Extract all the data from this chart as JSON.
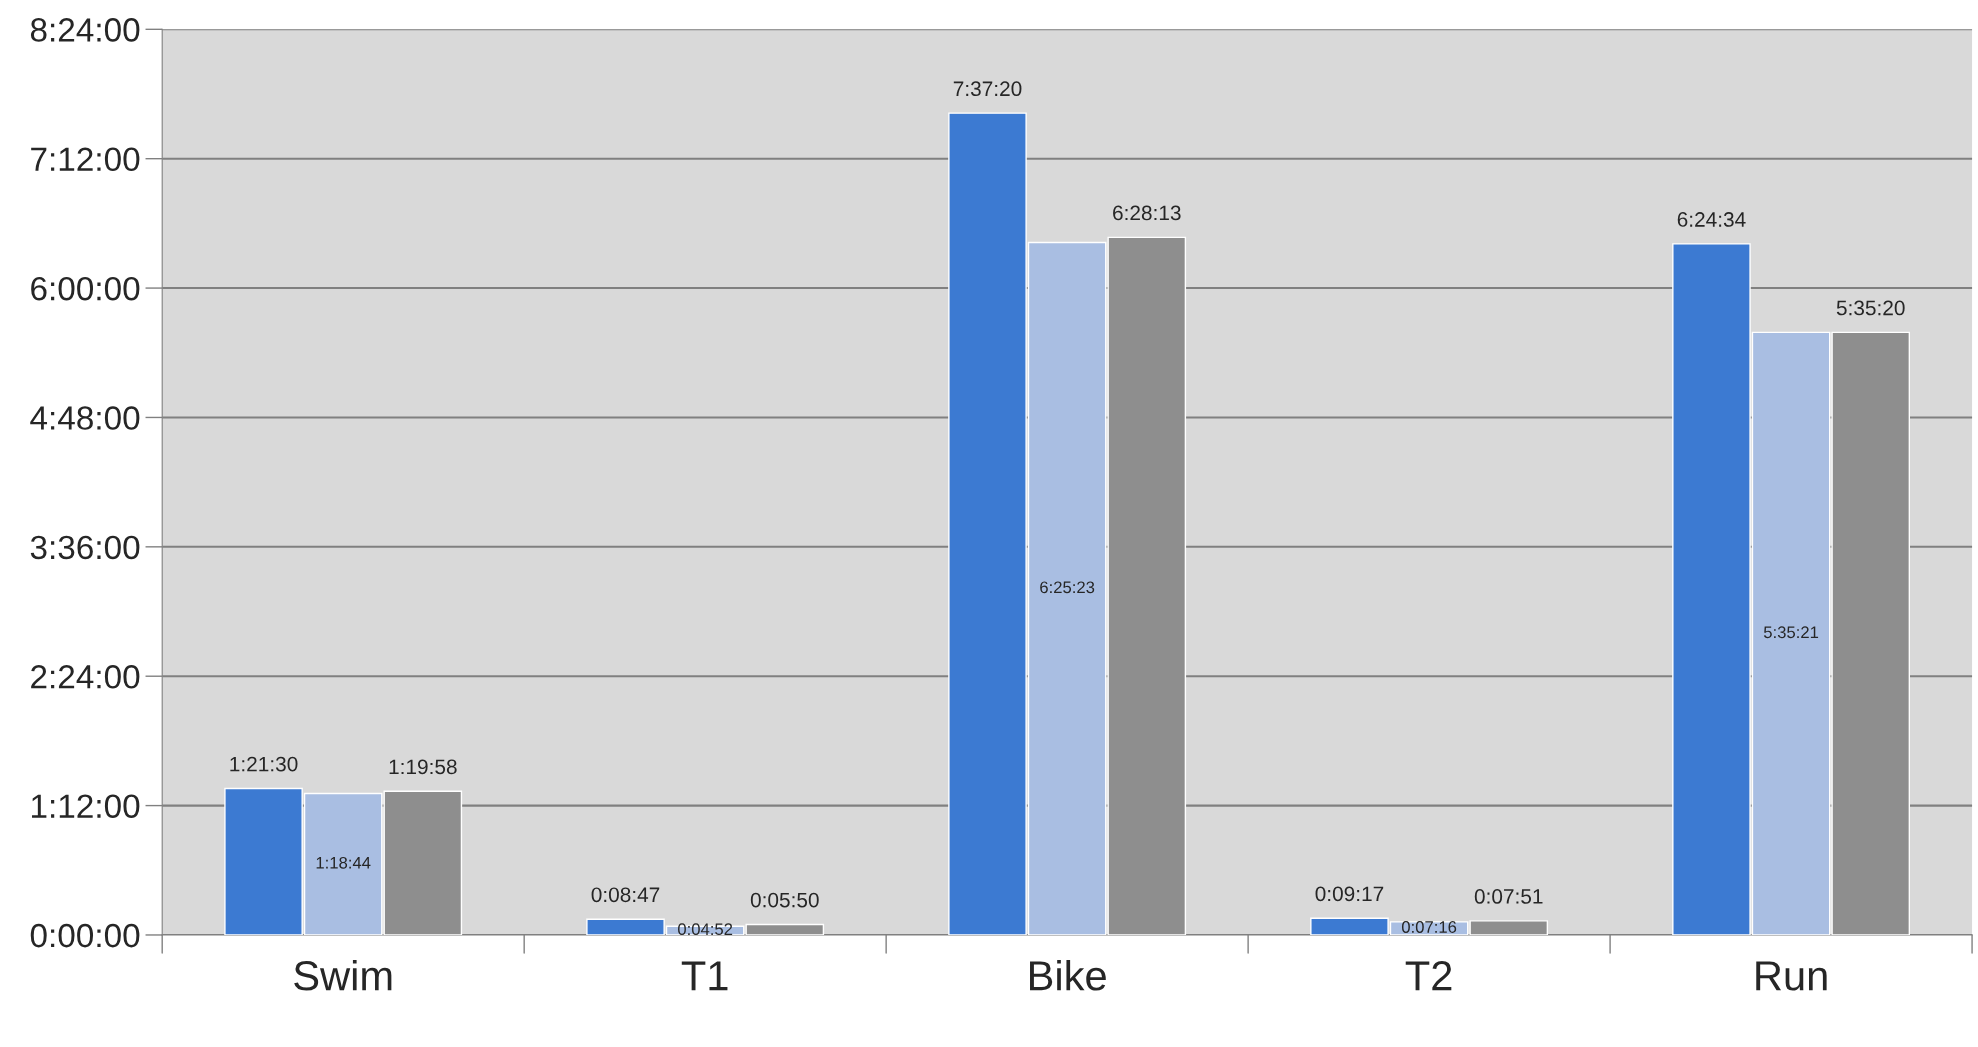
{
  "chart_data": {
    "type": "bar",
    "categories": [
      "Swim",
      "T1",
      "Bike",
      "T2",
      "Run"
    ],
    "series": [
      {
        "color": "#3c7ad2",
        "values": [
          1.358333,
          0.146389,
          7.622222,
          0.154722,
          6.409444
        ],
        "value_labels": [
          "1:21:30",
          "0:08:47",
          "7:37:20",
          "0:09:17",
          "6:24:34"
        ]
      },
      {
        "color": "#a9bee2",
        "values": [
          1.312222,
          0.081111,
          6.423056,
          0.121111,
          5.589167
        ],
        "value_labels": [
          "1:18:44",
          "0:04:52",
          "6:25:23",
          "0:07:16",
          "5:35:21"
        ]
      },
      {
        "color": "#8e8e8e",
        "values": [
          1.332778,
          0.097222,
          6.470278,
          0.130833,
          5.588889
        ],
        "value_labels": [
          "1:19:58",
          "0:05:50",
          "6:28:13",
          "0:07:51",
          "5:35:20"
        ]
      }
    ],
    "ylim": [
      0,
      8.4
    ],
    "yticks": [
      {
        "value": 0,
        "label": "0:00:00"
      },
      {
        "value": 1.2,
        "label": "1:12:00"
      },
      {
        "value": 2.4,
        "label": "2:24:00"
      },
      {
        "value": 3.6,
        "label": "3:36:00"
      },
      {
        "value": 4.8,
        "label": "4:48:00"
      },
      {
        "value": 6.0,
        "label": "6:00:00"
      },
      {
        "value": 7.2,
        "label": "7:12:00"
      },
      {
        "value": 8.4,
        "label": "8:24:00"
      }
    ],
    "grid": "y"
  }
}
